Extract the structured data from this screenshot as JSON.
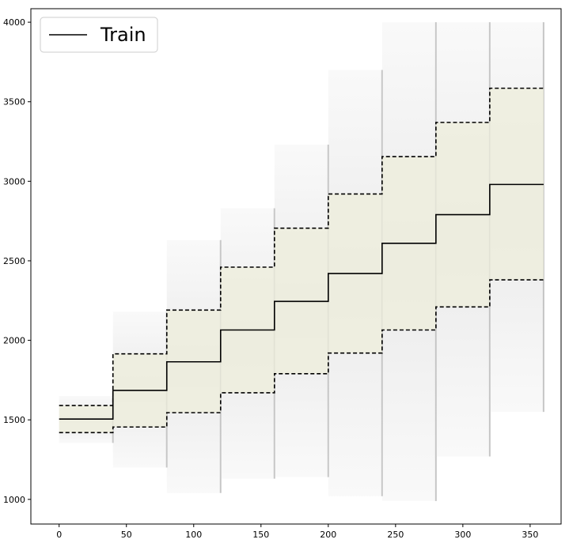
{
  "chart_data": {
    "type": "line",
    "title": "",
    "xlabel": "",
    "ylabel": "",
    "xlim": [
      -21,
      373
    ],
    "ylim": [
      845,
      4085
    ],
    "x_ticks": [
      0,
      50,
      100,
      150,
      200,
      250,
      300,
      350
    ],
    "y_ticks": [
      1000,
      1500,
      2000,
      2500,
      3000,
      3500,
      4000
    ],
    "grid": false,
    "legend": {
      "position": "top-left",
      "entries": [
        "Train"
      ]
    },
    "series": [
      {
        "name": "Train",
        "style": "solid",
        "color": "#000000",
        "steps": [
          {
            "x_start": 0,
            "x_end": 40,
            "value": 1505
          },
          {
            "x_start": 40,
            "x_end": 80,
            "value": 1685
          },
          {
            "x_start": 80,
            "x_end": 120,
            "value": 1865
          },
          {
            "x_start": 120,
            "x_end": 160,
            "value": 2065
          },
          {
            "x_start": 160,
            "x_end": 200,
            "value": 2245
          },
          {
            "x_start": 200,
            "x_end": 240,
            "value": 2420
          },
          {
            "x_start": 240,
            "x_end": 280,
            "value": 2610
          },
          {
            "x_start": 280,
            "x_end": 320,
            "value": 2790
          },
          {
            "x_start": 320,
            "x_end": 360,
            "value": 2980
          }
        ]
      },
      {
        "style": "dashed",
        "color": "#000000",
        "steps": [
          {
            "x_start": 0,
            "x_end": 40,
            "value": 1590
          },
          {
            "x_start": 40,
            "x_end": 80,
            "value": 1915
          },
          {
            "x_start": 80,
            "x_end": 120,
            "value": 2190
          },
          {
            "x_start": 120,
            "x_end": 160,
            "value": 2460
          },
          {
            "x_start": 160,
            "x_end": 200,
            "value": 2705
          },
          {
            "x_start": 200,
            "x_end": 240,
            "value": 2920
          },
          {
            "x_start": 240,
            "x_end": 280,
            "value": 3155
          },
          {
            "x_start": 280,
            "x_end": 320,
            "value": 3370
          },
          {
            "x_start": 320,
            "x_end": 360,
            "value": 3585
          }
        ]
      },
      {
        "style": "dashed",
        "color": "#000000",
        "steps": [
          {
            "x_start": 0,
            "x_end": 40,
            "value": 1420
          },
          {
            "x_start": 40,
            "x_end": 80,
            "value": 1455
          },
          {
            "x_start": 80,
            "x_end": 120,
            "value": 1545
          },
          {
            "x_start": 120,
            "x_end": 160,
            "value": 1670
          },
          {
            "x_start": 160,
            "x_end": 200,
            "value": 1790
          },
          {
            "x_start": 200,
            "x_end": 240,
            "value": 1920
          },
          {
            "x_start": 240,
            "x_end": 280,
            "value": 2065
          },
          {
            "x_start": 280,
            "x_end": 320,
            "value": 2210
          },
          {
            "x_start": 320,
            "x_end": 360,
            "value": 2380
          }
        ]
      }
    ],
    "band": {
      "color": "#eeeedc",
      "between": "dashed bounds"
    },
    "spread": [
      {
        "x_start": 0,
        "x_end": 40,
        "min": 1355,
        "max": 1650
      },
      {
        "x_start": 40,
        "x_end": 80,
        "min": 1200,
        "max": 2180
      },
      {
        "x_start": 80,
        "x_end": 120,
        "min": 1040,
        "max": 2630
      },
      {
        "x_start": 120,
        "x_end": 160,
        "min": 1130,
        "max": 2830
      },
      {
        "x_start": 160,
        "x_end": 200,
        "min": 1140,
        "max": 3230
      },
      {
        "x_start": 200,
        "x_end": 240,
        "min": 1020,
        "max": 3700
      },
      {
        "x_start": 240,
        "x_end": 280,
        "min": 990,
        "max": 4000
      },
      {
        "x_start": 280,
        "x_end": 320,
        "min": 1270,
        "max": 4000
      },
      {
        "x_start": 320,
        "x_end": 360,
        "min": 1550,
        "max": 4000
      }
    ]
  }
}
